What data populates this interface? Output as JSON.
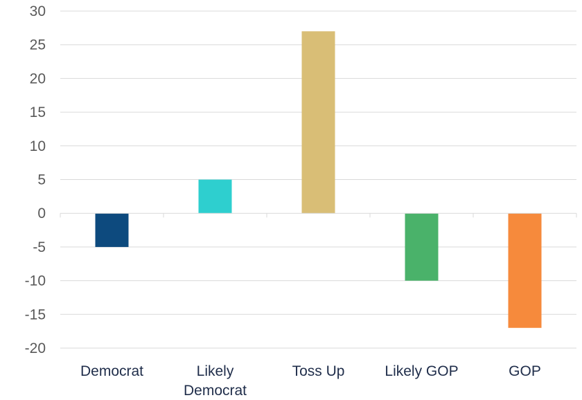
{
  "chart_data": {
    "type": "bar",
    "categories": [
      [
        "Democrat"
      ],
      [
        "Likely",
        "Democrat"
      ],
      [
        "Toss Up"
      ],
      [
        "Likely GOP"
      ],
      [
        "GOP"
      ]
    ],
    "values": [
      -5,
      5,
      27,
      -10,
      -17
    ],
    "colors": [
      "#0d4a7e",
      "#2ecfcf",
      "#d9be76",
      "#4ab26a",
      "#f68a3c"
    ],
    "ylim": [
      -20,
      30
    ],
    "yticks": [
      30,
      25,
      20,
      15,
      10,
      5,
      0,
      -5,
      -10,
      -15,
      -20
    ],
    "grid": true,
    "title": "",
    "xlabel": "",
    "ylabel": ""
  }
}
